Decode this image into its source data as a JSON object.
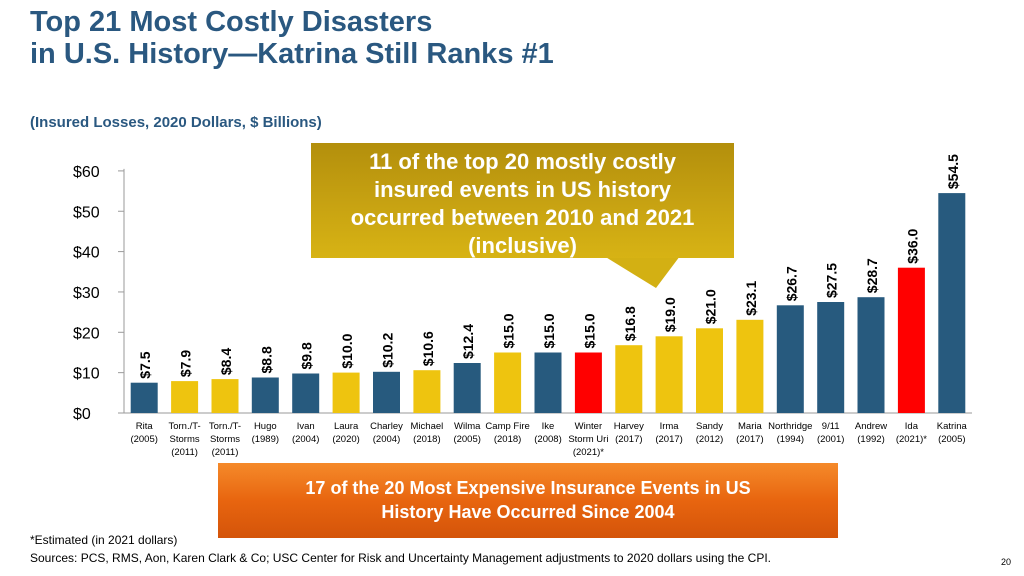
{
  "slide": {
    "title_line1": "Top 21 Most Costly Disasters",
    "title_line2": "in U.S. History—Katrina Still Ranks #1",
    "subtitle": "(Insured Losses, 2020 Dollars, $ Billions)",
    "callout": {
      "line1": "11 of the top 20 mostly costly",
      "line2": "insured events in US history",
      "line3": "occurred between 2010 and 2021",
      "line4": "(inclusive)"
    },
    "bottom_box": {
      "line1": "17 of the 20 Most Expensive Insurance Events in US",
      "line2": "History Have Occurred Since 2004"
    },
    "footnote": "*Estimated (in 2021 dollars)",
    "sources": "Sources: PCS, RMS, Aon, Karen Clark & Co; USC Center for Risk and Uncertainty Management adjustments to 2020 dollars using the CPI.",
    "page_number": "20"
  },
  "colors": {
    "navy": "#275a7e",
    "gold": "#eec40f",
    "red": "#ff0000",
    "title": "#2a5880"
  },
  "chart_data": {
    "type": "bar",
    "title": "Top 21 Most Costly Disasters in U.S. History",
    "ylabel": "Insured Losses, 2020 Dollars, $ Billions",
    "xlabel": "",
    "ylim": [
      0,
      60
    ],
    "yticks": [
      "$0",
      "$10",
      "$20",
      "$30",
      "$40",
      "$50",
      "$60"
    ],
    "ytick_values": [
      0,
      10,
      20,
      30,
      40,
      50,
      60
    ],
    "categories": [
      {
        "name": "Rita",
        "year": "(2005)",
        "extra": ""
      },
      {
        "name": "Torn./T-",
        "year": "Storms",
        "extra": "(2011)"
      },
      {
        "name": "Torn./T-",
        "year": "Storms",
        "extra": "(2011)"
      },
      {
        "name": "Hugo",
        "year": "(1989)",
        "extra": ""
      },
      {
        "name": "Ivan",
        "year": "(2004)",
        "extra": ""
      },
      {
        "name": "Laura",
        "year": "(2020)",
        "extra": ""
      },
      {
        "name": "Charley",
        "year": "(2004)",
        "extra": ""
      },
      {
        "name": "Michael",
        "year": "(2018)",
        "extra": ""
      },
      {
        "name": "Wilma",
        "year": "(2005)",
        "extra": ""
      },
      {
        "name": "Camp Fire",
        "year": "(2018)",
        "extra": ""
      },
      {
        "name": "Ike",
        "year": "(2008)",
        "extra": ""
      },
      {
        "name": "Winter",
        "year": "Storm Uri",
        "extra": "(2021)*"
      },
      {
        "name": "Harvey",
        "year": "(2017)",
        "extra": ""
      },
      {
        "name": "Irma",
        "year": "(2017)",
        "extra": ""
      },
      {
        "name": "Sandy",
        "year": "(2012)",
        "extra": ""
      },
      {
        "name": "Maria",
        "year": "(2017)",
        "extra": ""
      },
      {
        "name": "Northridge",
        "year": "(1994)",
        "extra": ""
      },
      {
        "name": "9/11",
        "year": "(2001)",
        "extra": ""
      },
      {
        "name": "Andrew",
        "year": "(1992)",
        "extra": ""
      },
      {
        "name": "Ida",
        "year": "(2021)*",
        "extra": ""
      },
      {
        "name": "Katrina",
        "year": "(2005)",
        "extra": ""
      }
    ],
    "values": [
      7.5,
      7.9,
      8.4,
      8.8,
      9.8,
      10.0,
      10.2,
      10.6,
      12.4,
      15.0,
      15.0,
      15.0,
      16.8,
      19.0,
      21.0,
      23.1,
      26.7,
      27.5,
      28.7,
      36.0,
      54.5
    ],
    "value_labels": [
      "$7.5",
      "$7.9",
      "$8.4",
      "$8.8",
      "$9.8",
      "$10.0",
      "$10.2",
      "$10.6",
      "$12.4",
      "$15.0",
      "$15.0",
      "$15.0",
      "$16.8",
      "$19.0",
      "$21.0",
      "$23.1",
      "$26.7",
      "$27.5",
      "$28.7",
      "$36.0",
      "$54.5"
    ],
    "bar_colors": [
      "navy",
      "gold",
      "gold",
      "navy",
      "navy",
      "gold",
      "navy",
      "gold",
      "navy",
      "gold",
      "navy",
      "red",
      "gold",
      "gold",
      "gold",
      "gold",
      "navy",
      "navy",
      "navy",
      "red",
      "navy"
    ]
  }
}
